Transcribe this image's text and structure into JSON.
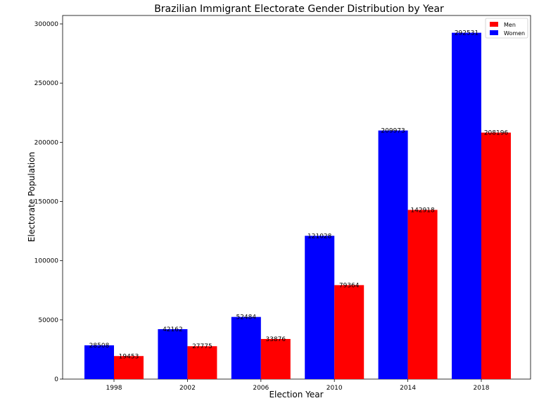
{
  "chart_data": {
    "type": "bar",
    "title": "Brazilian Immigrant Electorate Gender Distribution by Year",
    "xlabel": "Election Year",
    "ylabel": "Electorate Population",
    "categories": [
      "1998",
      "2002",
      "2006",
      "2010",
      "2014",
      "2018"
    ],
    "series": [
      {
        "name": "Women",
        "color": "#0000ff",
        "values": [
          28508,
          42162,
          52484,
          121028,
          209973,
          292531
        ]
      },
      {
        "name": "Men",
        "color": "#ff0000",
        "values": [
          19453,
          27775,
          33876,
          79364,
          142918,
          208196
        ]
      }
    ],
    "ylim": [
      0,
      310000
    ],
    "yticks": [
      0,
      50000,
      100000,
      150000,
      200000,
      250000,
      300000
    ],
    "legend_order": [
      "Men",
      "Women"
    ],
    "legend_position": "top-right",
    "grid": false
  }
}
